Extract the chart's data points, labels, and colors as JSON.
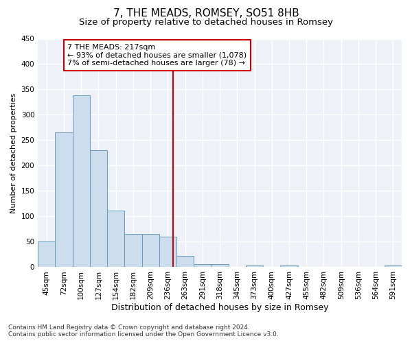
{
  "title": "7, THE MEADS, ROMSEY, SO51 8HB",
  "subtitle": "Size of property relative to detached houses in Romsey",
  "xlabel": "Distribution of detached houses by size in Romsey",
  "ylabel": "Number of detached properties",
  "bar_labels": [
    "45sqm",
    "72sqm",
    "100sqm",
    "127sqm",
    "154sqm",
    "182sqm",
    "209sqm",
    "236sqm",
    "263sqm",
    "291sqm",
    "318sqm",
    "345sqm",
    "373sqm",
    "400sqm",
    "427sqm",
    "455sqm",
    "482sqm",
    "509sqm",
    "536sqm",
    "564sqm",
    "591sqm"
  ],
  "bar_values": [
    50,
    265,
    338,
    230,
    112,
    65,
    65,
    60,
    22,
    6,
    6,
    0,
    3,
    0,
    3,
    0,
    0,
    0,
    0,
    0,
    3
  ],
  "bar_color": "#ccdded",
  "bar_edgecolor": "#6699bb",
  "ylim": [
    0,
    450
  ],
  "yticks": [
    0,
    50,
    100,
    150,
    200,
    250,
    300,
    350,
    400,
    450
  ],
  "vline_color": "#cc0000",
  "vline_pos": 7.3,
  "annotation_text": "7 THE MEADS: 217sqm\n← 93% of detached houses are smaller (1,078)\n7% of semi-detached houses are larger (78) →",
  "annotation_box_color": "#ffffff",
  "annotation_box_edgecolor": "#cc0000",
  "footer_text": "Contains HM Land Registry data © Crown copyright and database right 2024.\nContains public sector information licensed under the Open Government Licence v3.0.",
  "background_color": "#eef2f8",
  "grid_color": "#ffffff",
  "title_fontsize": 11,
  "subtitle_fontsize": 9.5,
  "xlabel_fontsize": 9,
  "ylabel_fontsize": 8,
  "tick_fontsize": 7.5,
  "annotation_fontsize": 8,
  "footer_fontsize": 6.5
}
